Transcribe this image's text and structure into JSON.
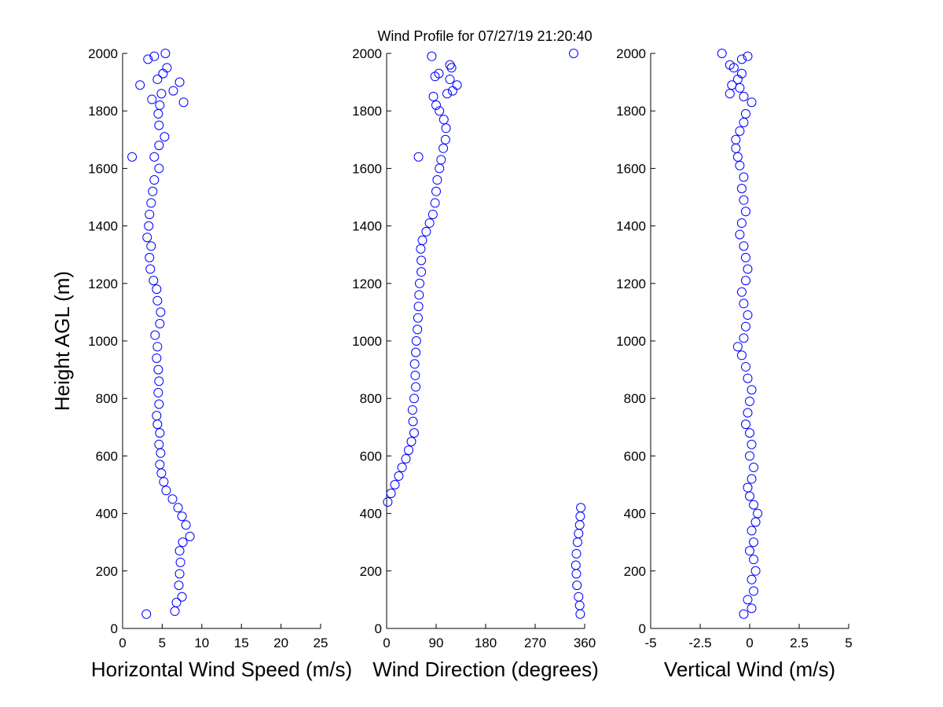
{
  "title": "Wind Profile for  07/27/19 21:20:40",
  "colors": {
    "marker": "#0000ff",
    "axis": "#000000",
    "background": "#ffffff"
  },
  "chart_data": [
    {
      "type": "scatter",
      "xlabel": "Horizontal Wind Speed (m/s)",
      "ylabel": "Height AGL (m)",
      "xlim": [
        0,
        25
      ],
      "ylim": [
        0,
        2000
      ],
      "xticks": [
        0,
        5,
        10,
        15,
        20,
        25
      ],
      "xtick_labels": [
        "0",
        "5",
        "10",
        "15",
        "20",
        "25"
      ],
      "yticks": [
        0,
        200,
        400,
        600,
        800,
        1000,
        1200,
        1400,
        1600,
        1800,
        2000
      ],
      "ytick_labels": [
        "0",
        "200",
        "400",
        "600",
        "800",
        "1000",
        "1200",
        "1400",
        "1600",
        "1800",
        "2000"
      ],
      "marker": "circle-open",
      "points": [
        [
          3,
          50
        ],
        [
          6.6,
          60
        ],
        [
          6.8,
          90
        ],
        [
          7.5,
          110
        ],
        [
          7.1,
          150
        ],
        [
          7.2,
          190
        ],
        [
          7.3,
          230
        ],
        [
          7.2,
          270
        ],
        [
          7.6,
          300
        ],
        [
          8.5,
          320
        ],
        [
          8.0,
          360
        ],
        [
          7.5,
          390
        ],
        [
          7.0,
          420
        ],
        [
          6.3,
          450
        ],
        [
          5.5,
          480
        ],
        [
          5.2,
          510
        ],
        [
          4.9,
          540
        ],
        [
          4.7,
          570
        ],
        [
          4.8,
          610
        ],
        [
          4.6,
          640
        ],
        [
          4.7,
          680
        ],
        [
          4.4,
          710
        ],
        [
          4.3,
          740
        ],
        [
          4.6,
          780
        ],
        [
          4.5,
          820
        ],
        [
          4.6,
          860
        ],
        [
          4.5,
          900
        ],
        [
          4.3,
          940
        ],
        [
          4.4,
          980
        ],
        [
          4.1,
          1020
        ],
        [
          4.7,
          1060
        ],
        [
          4.8,
          1100
        ],
        [
          4.4,
          1140
        ],
        [
          4.3,
          1180
        ],
        [
          3.9,
          1210
        ],
        [
          3.5,
          1250
        ],
        [
          3.4,
          1290
        ],
        [
          3.6,
          1330
        ],
        [
          3.1,
          1360
        ],
        [
          3.3,
          1400
        ],
        [
          3.4,
          1440
        ],
        [
          3.6,
          1480
        ],
        [
          3.8,
          1520
        ],
        [
          4.0,
          1560
        ],
        [
          4.6,
          1600
        ],
        [
          4.0,
          1640
        ],
        [
          1.2,
          1640
        ],
        [
          4.6,
          1680
        ],
        [
          5.3,
          1710
        ],
        [
          4.6,
          1750
        ],
        [
          4.5,
          1790
        ],
        [
          4.7,
          1820
        ],
        [
          3.7,
          1840
        ],
        [
          4.9,
          1860
        ],
        [
          6.4,
          1870
        ],
        [
          2.2,
          1890
        ],
        [
          7.7,
          1830
        ],
        [
          7.2,
          1900
        ],
        [
          4.4,
          1910
        ],
        [
          5.1,
          1930
        ],
        [
          5.6,
          1950
        ],
        [
          3.2,
          1980
        ],
        [
          4.0,
          1990
        ],
        [
          5.4,
          2000
        ]
      ]
    },
    {
      "type": "scatter",
      "xlabel": "Wind Direction (degrees)",
      "xlim": [
        0,
        360
      ],
      "ylim": [
        0,
        2000
      ],
      "xticks": [
        0,
        90,
        180,
        270,
        360
      ],
      "xtick_labels": [
        "0",
        "90",
        "180",
        "270",
        "360"
      ],
      "yticks": [
        0,
        200,
        400,
        600,
        800,
        1000,
        1200,
        1400,
        1600,
        1800,
        2000
      ],
      "ytick_labels": [
        "0",
        "200",
        "400",
        "600",
        "800",
        "1000",
        "1200",
        "1400",
        "1600",
        "1800",
        "2000"
      ],
      "marker": "circle-open",
      "points": [
        [
          352,
          50
        ],
        [
          351,
          80
        ],
        [
          349,
          110
        ],
        [
          346,
          150
        ],
        [
          345,
          190
        ],
        [
          344,
          220
        ],
        [
          345,
          260
        ],
        [
          347,
          300
        ],
        [
          349,
          330
        ],
        [
          351,
          360
        ],
        [
          352,
          390
        ],
        [
          353,
          420
        ],
        [
          2,
          440
        ],
        [
          8,
          470
        ],
        [
          15,
          500
        ],
        [
          22,
          530
        ],
        [
          28,
          560
        ],
        [
          35,
          590
        ],
        [
          40,
          620
        ],
        [
          45,
          650
        ],
        [
          50,
          680
        ],
        [
          48,
          720
        ],
        [
          47,
          760
        ],
        [
          50,
          800
        ],
        [
          53,
          840
        ],
        [
          52,
          880
        ],
        [
          51,
          920
        ],
        [
          53,
          960
        ],
        [
          54,
          1000
        ],
        [
          56,
          1040
        ],
        [
          57,
          1080
        ],
        [
          58,
          1120
        ],
        [
          59,
          1160
        ],
        [
          60,
          1200
        ],
        [
          63,
          1240
        ],
        [
          63,
          1280
        ],
        [
          62,
          1320
        ],
        [
          65,
          1350
        ],
        [
          72,
          1380
        ],
        [
          78,
          1410
        ],
        [
          84,
          1440
        ],
        [
          88,
          1480
        ],
        [
          90,
          1520
        ],
        [
          92,
          1560
        ],
        [
          96,
          1600
        ],
        [
          99,
          1630
        ],
        [
          58,
          1640
        ],
        [
          103,
          1670
        ],
        [
          107,
          1700
        ],
        [
          108,
          1740
        ],
        [
          104,
          1770
        ],
        [
          96,
          1800
        ],
        [
          90,
          1820
        ],
        [
          85,
          1850
        ],
        [
          110,
          1860
        ],
        [
          120,
          1870
        ],
        [
          128,
          1890
        ],
        [
          115,
          1910
        ],
        [
          95,
          1930
        ],
        [
          88,
          1920
        ],
        [
          118,
          1950
        ],
        [
          115,
          1960
        ],
        [
          82,
          1990
        ],
        [
          340,
          2000
        ]
      ]
    },
    {
      "type": "scatter",
      "xlabel": "Vertical Wind (m/s)",
      "xlim": [
        -5,
        5
      ],
      "ylim": [
        0,
        2000
      ],
      "xticks": [
        -5,
        -2.5,
        0,
        2.5,
        5
      ],
      "xtick_labels": [
        "-5",
        "-2.5",
        "0",
        "2.5",
        "5"
      ],
      "yticks": [
        0,
        200,
        400,
        600,
        800,
        1000,
        1200,
        1400,
        1600,
        1800,
        2000
      ],
      "ytick_labels": [
        "0",
        "200",
        "400",
        "600",
        "800",
        "1000",
        "1200",
        "1400",
        "1600",
        "1800",
        "2000"
      ],
      "marker": "circle-open",
      "points": [
        [
          -0.3,
          50
        ],
        [
          0.1,
          70
        ],
        [
          -0.1,
          100
        ],
        [
          0.2,
          130
        ],
        [
          0.1,
          170
        ],
        [
          0.3,
          200
        ],
        [
          0.2,
          240
        ],
        [
          0.0,
          270
        ],
        [
          0.2,
          300
        ],
        [
          0.1,
          340
        ],
        [
          0.3,
          370
        ],
        [
          0.4,
          400
        ],
        [
          0.2,
          430
        ],
        [
          0.0,
          460
        ],
        [
          -0.1,
          490
        ],
        [
          0.1,
          520
        ],
        [
          0.2,
          560
        ],
        [
          0.0,
          600
        ],
        [
          0.1,
          640
        ],
        [
          0.0,
          680
        ],
        [
          -0.2,
          710
        ],
        [
          -0.1,
          750
        ],
        [
          0.0,
          790
        ],
        [
          0.1,
          830
        ],
        [
          -0.1,
          870
        ],
        [
          -0.2,
          910
        ],
        [
          -0.4,
          950
        ],
        [
          -0.6,
          980
        ],
        [
          -0.3,
          1010
        ],
        [
          -0.2,
          1050
        ],
        [
          -0.1,
          1090
        ],
        [
          -0.3,
          1130
        ],
        [
          -0.4,
          1170
        ],
        [
          -0.2,
          1210
        ],
        [
          -0.1,
          1250
        ],
        [
          -0.2,
          1290
        ],
        [
          -0.3,
          1330
        ],
        [
          -0.5,
          1370
        ],
        [
          -0.4,
          1410
        ],
        [
          -0.2,
          1450
        ],
        [
          -0.3,
          1490
        ],
        [
          -0.4,
          1530
        ],
        [
          -0.3,
          1570
        ],
        [
          -0.5,
          1610
        ],
        [
          -0.6,
          1640
        ],
        [
          -0.7,
          1670
        ],
        [
          -0.7,
          1700
        ],
        [
          -0.5,
          1730
        ],
        [
          -0.3,
          1760
        ],
        [
          -0.2,
          1790
        ],
        [
          0.1,
          1830
        ],
        [
          -0.3,
          1850
        ],
        [
          -1.0,
          1860
        ],
        [
          -0.5,
          1880
        ],
        [
          -0.9,
          1890
        ],
        [
          -0.6,
          1910
        ],
        [
          -0.4,
          1930
        ],
        [
          -0.8,
          1950
        ],
        [
          -1.0,
          1960
        ],
        [
          -0.4,
          1980
        ],
        [
          -0.1,
          1990
        ],
        [
          -1.4,
          2000
        ]
      ]
    }
  ]
}
